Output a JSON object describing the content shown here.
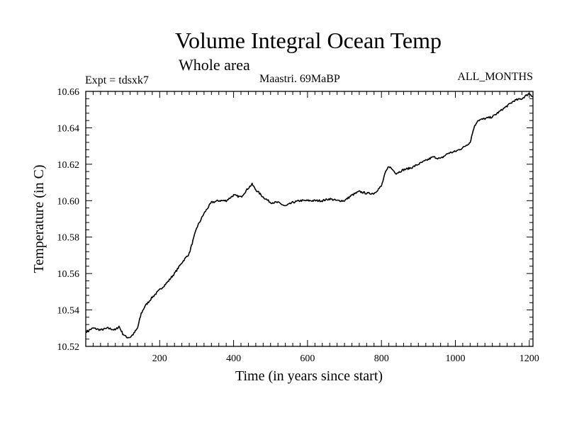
{
  "chart_data": {
    "type": "line",
    "title": "Volume Integral Ocean Temp",
    "subtitle": "Whole area",
    "annotations": {
      "experiment": "Expt = tdsxk7",
      "period": "Maastri.  69MaBP",
      "months": "ALL_MONTHS"
    },
    "xlabel": "Time (in years since start)",
    "ylabel": "Temperature (in C)",
    "xlim": [
      0,
      1210
    ],
    "ylim": [
      10.52,
      10.66
    ],
    "xticks": [
      200,
      400,
      600,
      800,
      1000,
      1200
    ],
    "xtick_labels": [
      "200",
      "400",
      "600",
      "800",
      "1000",
      "1200"
    ],
    "yticks": [
      10.52,
      10.54,
      10.56,
      10.58,
      10.6,
      10.62,
      10.64,
      10.66
    ],
    "ytick_labels": [
      "10.52",
      "10.54",
      "10.56",
      "10.58",
      "10.60",
      "10.62",
      "10.64",
      "10.66"
    ],
    "grid": false,
    "series": [
      {
        "name": "Volume integral ocean temperature",
        "x": [
          0,
          20,
          40,
          60,
          80,
          90,
          100,
          110,
          120,
          130,
          140,
          150,
          160,
          180,
          200,
          220,
          240,
          260,
          280,
          300,
          320,
          340,
          360,
          380,
          400,
          420,
          440,
          450,
          460,
          480,
          500,
          520,
          540,
          560,
          580,
          600,
          620,
          640,
          660,
          680,
          700,
          720,
          740,
          760,
          780,
          800,
          810,
          820,
          830,
          840,
          860,
          880,
          900,
          920,
          940,
          960,
          980,
          1000,
          1020,
          1040,
          1050,
          1060,
          1080,
          1100,
          1120,
          1140,
          1160,
          1180,
          1200,
          1210
        ],
        "values": [
          10.528,
          10.53,
          10.529,
          10.53,
          10.529,
          10.531,
          10.527,
          10.525,
          10.525,
          10.527,
          10.53,
          10.538,
          10.542,
          10.547,
          10.551,
          10.555,
          10.56,
          10.566,
          10.571,
          10.585,
          10.593,
          10.599,
          10.6,
          10.6,
          10.603,
          10.602,
          10.607,
          10.609,
          10.606,
          10.602,
          10.599,
          10.599,
          10.597,
          10.599,
          10.6,
          10.6,
          10.6,
          10.6,
          10.601,
          10.6,
          10.6,
          10.603,
          10.605,
          10.604,
          10.604,
          10.608,
          10.615,
          10.619,
          10.617,
          10.615,
          10.617,
          10.618,
          10.62,
          10.622,
          10.624,
          10.623,
          10.626,
          10.627,
          10.629,
          10.632,
          10.64,
          10.644,
          10.645,
          10.646,
          10.649,
          10.652,
          10.655,
          10.656,
          10.659,
          10.657
        ]
      }
    ]
  }
}
